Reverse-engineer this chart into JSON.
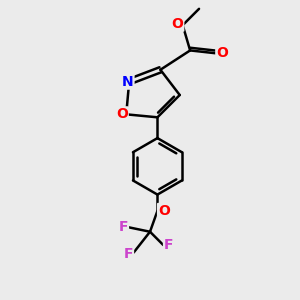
{
  "background_color": "#ebebeb",
  "bond_color": "#000000",
  "bond_width": 1.8,
  "atom_colors": {
    "O": "#ff0000",
    "N": "#0000ff",
    "F": "#cc44cc",
    "C": "#000000"
  },
  "font_size": 10,
  "fig_size": [
    3.0,
    3.0
  ],
  "dpi": 100
}
